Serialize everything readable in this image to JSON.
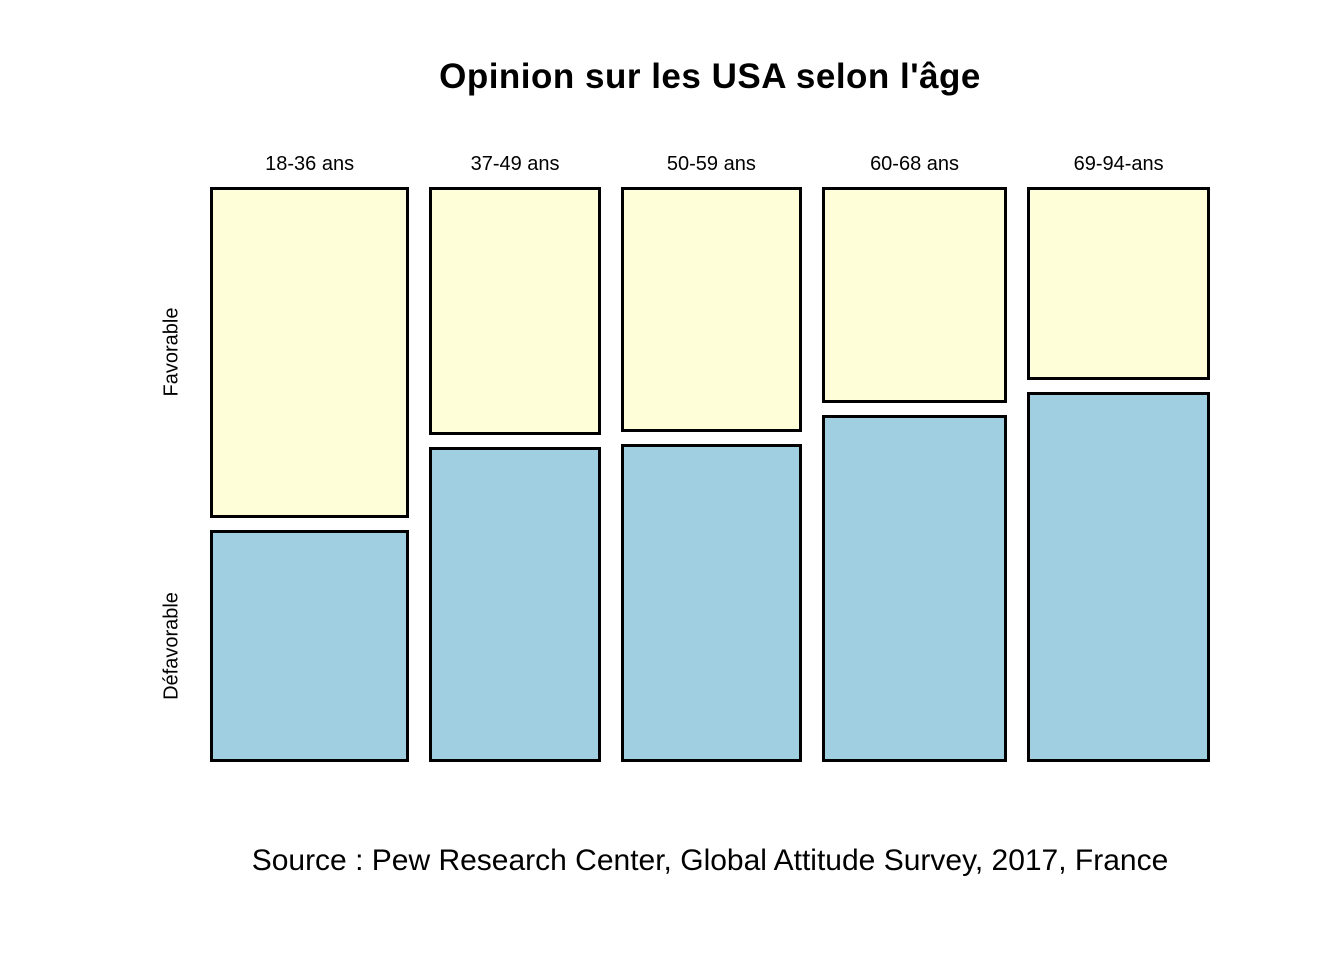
{
  "chart_data": {
    "type": "mosaic",
    "title": "Opinion sur les USA selon l'âge",
    "categories": [
      "18-36 ans",
      "37-49 ans",
      "50-59 ans",
      "60-68 ans",
      "69-94-ans"
    ],
    "rows": [
      "Favorable",
      "Défavorable"
    ],
    "series": [
      {
        "name": "Favorable",
        "shares": [
          0.588,
          0.44,
          0.435,
          0.383,
          0.343
        ]
      },
      {
        "name": "Défavorable",
        "shares": [
          0.412,
          0.56,
          0.565,
          0.617,
          0.657
        ]
      }
    ],
    "favorable_percent_estimate": [
      59,
      44,
      44,
      38,
      34
    ],
    "column_width_share": [
      0.217,
      0.187,
      0.197,
      0.202,
      0.199
    ],
    "source": "Source : Pew Research Center, Global Attitude Survey, 2017, France",
    "legend_position": "none",
    "grid": false,
    "colors": {
      "favorable": "#FEFFD9",
      "defavorable": "#9FCFE0",
      "border": "#000000",
      "background": "#FFFFFF",
      "text": "#000000"
    }
  }
}
